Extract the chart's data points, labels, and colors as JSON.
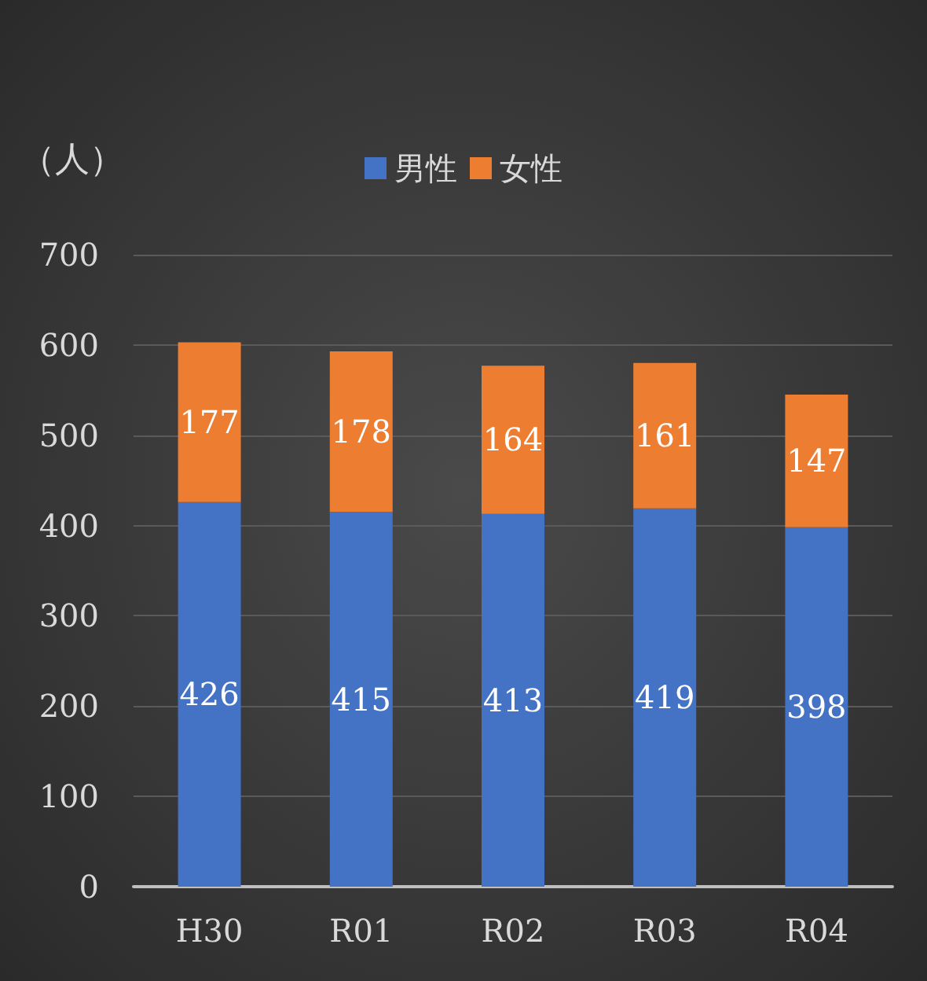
{
  "chart_data": {
    "type": "bar",
    "ylabel": "（人）",
    "categories": [
      "H30",
      "R01",
      "R02",
      "R03",
      "R04"
    ],
    "stacked": true,
    "series": [
      {
        "name": "男性",
        "color": "#4472c4",
        "values": [
          426,
          415,
          413,
          419,
          398
        ]
      },
      {
        "name": "女性",
        "color": "#ed7d31",
        "values": [
          177,
          178,
          164,
          161,
          147
        ]
      }
    ],
    "ylim": [
      0,
      700
    ],
    "yticks": [
      0,
      100,
      200,
      300,
      400,
      500,
      600,
      700
    ],
    "grid": "y",
    "legend": "top",
    "data_labels": true
  }
}
